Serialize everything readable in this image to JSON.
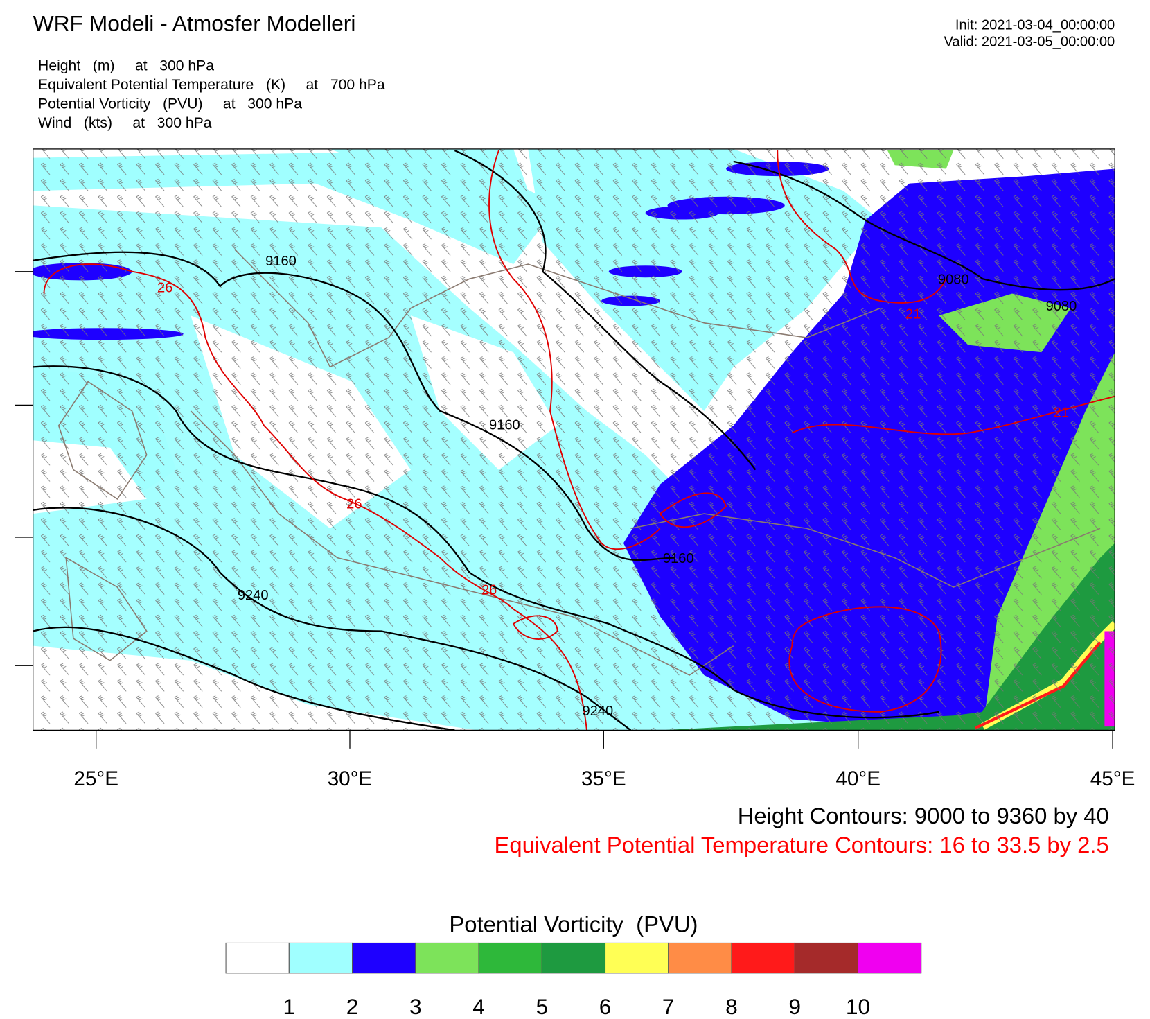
{
  "header": {
    "title": "WRF Modeli - Atmosfer Modelleri",
    "init": "Init: 2021-03-04_00:00:00",
    "valid": "Valid: 2021-03-05_00:00:00",
    "fields": [
      "Height   (m)     at   300 hPa",
      "Equivalent Potential Temperature   (K)     at   700 hPa",
      "Potential Vorticity   (PVU)     at   300 hPa",
      "Wind   (kts)     at   300 hPa"
    ]
  },
  "map": {
    "x_labels": [
      "25°E",
      "30°E",
      "35°E",
      "40°E",
      "45°E"
    ],
    "height_labels": [
      "9160",
      "9160",
      "9160",
      "9080",
      "9080",
      "9240",
      "9240"
    ],
    "height_color": "#000000",
    "theta_labels": [
      "26",
      "26",
      "26",
      "21",
      "21"
    ],
    "theta_color": "#e00000"
  },
  "legend": {
    "height": "Height Contours: 9000 to 9360 by 40",
    "theta_e": "Equivalent Potential Temperature Contours: 16 to 33.5 by 2.5",
    "theta_color": "#ff0000"
  },
  "colorbar": {
    "title": "Potential Vorticity  (PVU)",
    "colors": [
      "#ffffff",
      "#a0ffff",
      "#1e00ff",
      "#7de35a",
      "#2eb83a",
      "#1e9a40",
      "#ffff55",
      "#ff8c46",
      "#ff1a1a",
      "#a52a2a",
      "#f000f0"
    ],
    "levels": [
      1,
      2,
      3,
      4,
      5,
      6,
      7,
      8,
      9,
      10
    ]
  }
}
